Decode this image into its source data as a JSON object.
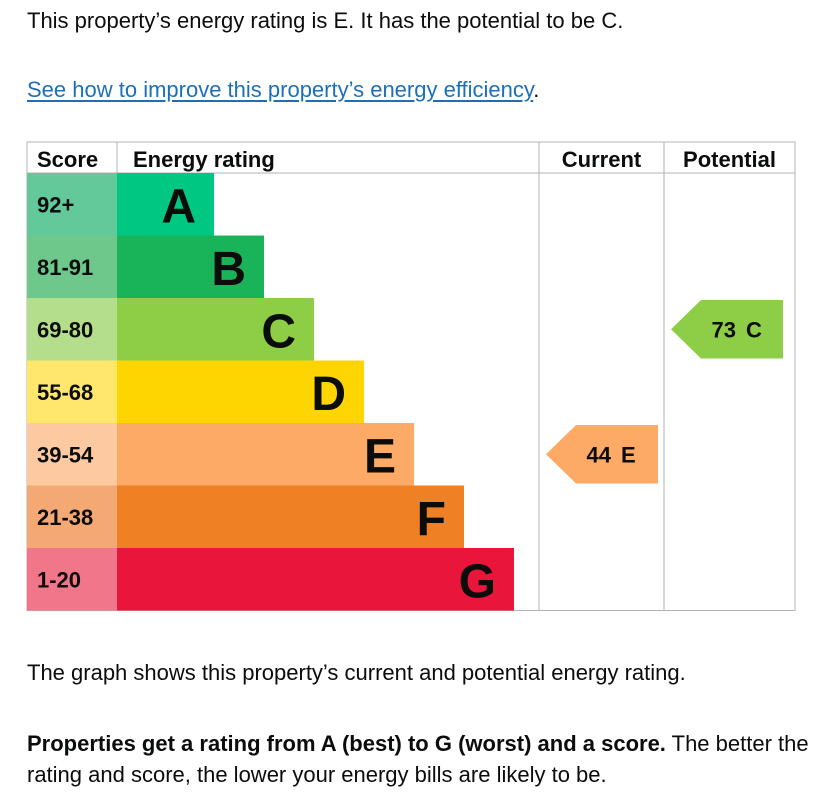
{
  "intro_text": "This property’s energy rating is E. It has the potential to be C.",
  "improve_link": {
    "text": "See how to improve this property’s energy efficiency",
    "suffix": "."
  },
  "chart_data": {
    "type": "bar",
    "column_headers": {
      "score": "Score",
      "rating": "Energy rating",
      "current": "Current",
      "potential": "Potential"
    },
    "bands": [
      {
        "score": "92+",
        "letter": "A",
        "bar_color": "#00c781",
        "score_color": "#63c99a"
      },
      {
        "score": "81-91",
        "letter": "B",
        "bar_color": "#19b459",
        "score_color": "#6ec88b"
      },
      {
        "score": "69-80",
        "letter": "C",
        "bar_color": "#8dce46",
        "score_color": "#b4de8c"
      },
      {
        "score": "55-68",
        "letter": "D",
        "bar_color": "#ffd500",
        "score_color": "#ffe66d"
      },
      {
        "score": "39-54",
        "letter": "E",
        "bar_color": "#fcaa65",
        "score_color": "#fdc9a0"
      },
      {
        "score": "21-38",
        "letter": "F",
        "bar_color": "#ef8023",
        "score_color": "#f4a874"
      },
      {
        "score": "1-20",
        "letter": "G",
        "bar_color": "#e9153b",
        "score_color": "#f2768a"
      }
    ],
    "current": {
      "score": 44,
      "letter": "E",
      "color": "#fcaa65"
    },
    "potential": {
      "score": 73,
      "letter": "C",
      "color": "#8dce46"
    }
  },
  "graph_caption": "The graph shows this property’s current and potential energy rating.",
  "explanation": {
    "bold": "Properties get a rating from A (best) to G (worst) and a score.",
    "normal": " The better the rating and score, the lower your energy bills are likely to be."
  }
}
